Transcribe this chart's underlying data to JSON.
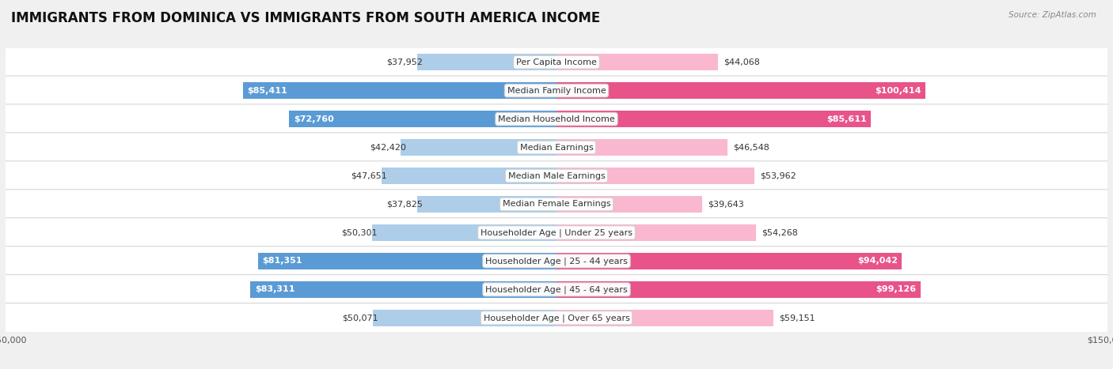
{
  "title": "IMMIGRANTS FROM DOMINICA VS IMMIGRANTS FROM SOUTH AMERICA INCOME",
  "source": "Source: ZipAtlas.com",
  "categories": [
    "Per Capita Income",
    "Median Family Income",
    "Median Household Income",
    "Median Earnings",
    "Median Male Earnings",
    "Median Female Earnings",
    "Householder Age | Under 25 years",
    "Householder Age | 25 - 44 years",
    "Householder Age | 45 - 64 years",
    "Householder Age | Over 65 years"
  ],
  "dominica_values": [
    37952,
    85411,
    72760,
    42420,
    47651,
    37825,
    50301,
    81351,
    83311,
    50071
  ],
  "south_america_values": [
    44068,
    100414,
    85611,
    46548,
    53962,
    39643,
    54268,
    94042,
    99126,
    59151
  ],
  "dominica_color_light": "#aecde8",
  "dominica_color_dark": "#5b9bd5",
  "south_america_color_light": "#f9b8d0",
  "south_america_color_dark": "#e8538a",
  "bar_height": 0.6,
  "max_value": 150000,
  "bg_color": "#f0f0f0",
  "row_bg_color": "#ffffff",
  "title_fontsize": 12,
  "label_fontsize": 8.0,
  "axis_label_fontsize": 8,
  "legend_fontsize": 9,
  "dom_inside_threshold": 65000,
  "sa_inside_threshold": 65000
}
